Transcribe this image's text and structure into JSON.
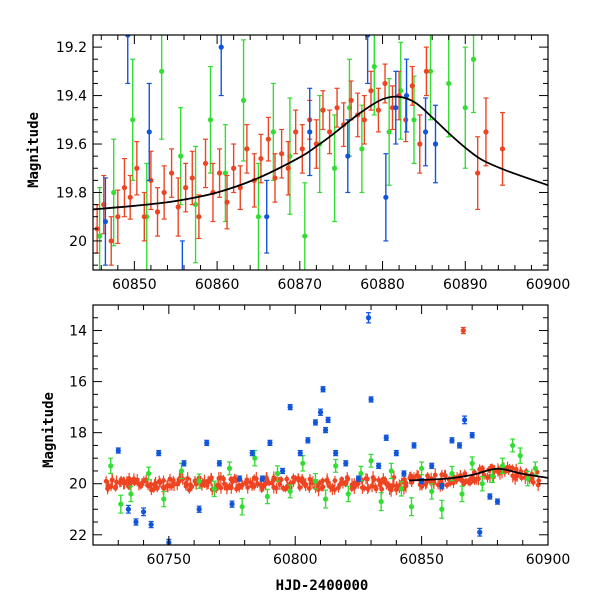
{
  "chart_data": [
    {
      "type": "scatter",
      "title": "",
      "xlabel": "",
      "ylabel": "Magnitude",
      "xlim": [
        60845,
        60900
      ],
      "ylim": [
        20.12,
        19.15
      ],
      "y_inverted": true,
      "xticks": [
        60850,
        60860,
        60870,
        60880,
        60890,
        60900
      ],
      "yticks": [
        19.2,
        19.4,
        19.6,
        19.8,
        20
      ],
      "ytick_labels": [
        "19.2",
        "19.4",
        "19.6",
        "19.8",
        "20"
      ],
      "grid": false,
      "colors": {
        "red": "#ee4422",
        "green": "#33dd33",
        "blue": "#1155dd",
        "model": "#000000"
      },
      "model_curve": {
        "x": [
          60845,
          60850,
          60855,
          60860,
          60865,
          60870,
          60872,
          60874,
          60876,
          60878,
          60880,
          60882,
          60884,
          60886,
          60888,
          60890,
          60892,
          60895,
          60900
        ],
        "y": [
          19.87,
          19.855,
          19.835,
          19.8,
          19.74,
          19.655,
          19.61,
          19.56,
          19.505,
          19.455,
          19.415,
          19.405,
          19.43,
          19.49,
          19.555,
          19.615,
          19.665,
          19.71,
          19.77
        ]
      },
      "series": [
        {
          "color": "red",
          "x": [
            60845.5,
            60846.3,
            60847.2,
            60848.0,
            60848.8,
            60849.5,
            60850.3,
            60851.2,
            60852.0,
            60852.8,
            60853.6,
            60854.5,
            60855.3,
            60856.2,
            60857.0,
            60857.8,
            60858.6,
            60859.5,
            60860.3,
            60861.2,
            60862.0,
            60862.8,
            60863.6,
            60864.5,
            60865.3,
            60866.2,
            60867.0,
            60867.8,
            60868.6,
            60869.5,
            60870.3,
            60871.2,
            60872.0,
            60872.8,
            60873.6,
            60874.5,
            60875.3,
            60876.2,
            60877.0,
            60877.8,
            60878.6,
            60879.5,
            60880.3,
            60881.2,
            60882.0,
            60882.8,
            60883.6,
            60884.5,
            60885.3,
            60891.5,
            60892.5,
            60894.5
          ],
          "y": [
            19.95,
            19.85,
            20.0,
            19.9,
            19.78,
            19.82,
            19.7,
            19.9,
            19.75,
            19.88,
            19.8,
            19.72,
            19.86,
            19.78,
            19.74,
            19.9,
            19.68,
            19.8,
            19.72,
            19.84,
            19.7,
            19.78,
            19.62,
            19.75,
            19.66,
            19.58,
            19.74,
            19.64,
            19.7,
            19.55,
            19.62,
            19.5,
            19.6,
            19.46,
            19.55,
            19.45,
            19.52,
            19.42,
            19.48,
            19.5,
            19.38,
            19.46,
            19.35,
            19.45,
            19.4,
            19.5,
            19.36,
            19.6,
            19.3,
            19.72,
            19.55,
            19.62
          ],
          "err": [
            0.1,
            0.12,
            0.1,
            0.11,
            0.12,
            0.09,
            0.11,
            0.1,
            0.12,
            0.1,
            0.11,
            0.1,
            0.12,
            0.1,
            0.11,
            0.09,
            0.1,
            0.12,
            0.1,
            0.11,
            0.1,
            0.09,
            0.1,
            0.11,
            0.1,
            0.09,
            0.1,
            0.1,
            0.11,
            0.09,
            0.1,
            0.08,
            0.1,
            0.08,
            0.09,
            0.08,
            0.09,
            0.08,
            0.09,
            0.1,
            0.08,
            0.09,
            0.08,
            0.09,
            0.1,
            0.09,
            0.08,
            0.12,
            0.1,
            0.15,
            0.14,
            0.15
          ]
        },
        {
          "color": "green",
          "x": [
            60845.8,
            60847.5,
            60849.8,
            60851.5,
            60853.3,
            60855.6,
            60857.4,
            60859.2,
            60861.0,
            60863.2,
            60865.0,
            60866.8,
            60868.8,
            60870.6,
            60872.4,
            60874.2,
            60876.0,
            60877.5,
            60879.0,
            60880.8,
            60882.2,
            60883.8,
            60885.8,
            60888.0,
            60890.0,
            60891.0
          ],
          "y": [
            19.98,
            19.8,
            19.5,
            19.9,
            19.3,
            19.65,
            19.85,
            19.5,
            19.72,
            19.42,
            19.9,
            19.55,
            19.65,
            19.98,
            19.6,
            19.7,
            19.45,
            19.62,
            19.28,
            19.55,
            19.38,
            19.5,
            19.3,
            19.35,
            19.45,
            19.25
          ],
          "err": [
            0.2,
            0.22,
            0.25,
            0.22,
            0.28,
            0.2,
            0.24,
            0.22,
            0.2,
            0.25,
            0.22,
            0.2,
            0.24,
            0.22,
            0.2,
            0.22,
            0.2,
            0.18,
            0.2,
            0.22,
            0.2,
            0.18,
            0.2,
            0.22,
            0.25,
            0.22
          ]
        },
        {
          "color": "blue",
          "x": [
            60846.5,
            60849.2,
            60851.8,
            60855.8,
            60860.5,
            60866.0,
            60871.2,
            60875.8,
            60878.2,
            60880.4,
            60881.6,
            60882.9,
            60885.2,
            60886.4
          ],
          "y": [
            19.92,
            19.15,
            19.55,
            20.15,
            19.2,
            19.9,
            19.55,
            19.65,
            19.15,
            19.82,
            19.45,
            19.4,
            19.55,
            19.6
          ],
          "err": [
            0.18,
            0.2,
            0.2,
            0.15,
            0.2,
            0.15,
            0.18,
            0.15,
            0.2,
            0.18,
            0.15,
            0.15,
            0.14,
            0.16
          ]
        }
      ]
    },
    {
      "type": "scatter",
      "title": "",
      "xlabel": "HJD-2400000",
      "ylabel": "Magnitude",
      "xlim": [
        60720,
        60900
      ],
      "ylim": [
        22.4,
        13.0
      ],
      "y_inverted": true,
      "xticks": [
        60750,
        60800,
        60850,
        60900
      ],
      "yticks": [
        14,
        16,
        18,
        20,
        22
      ],
      "ytick_labels": [
        "14",
        "16",
        "18",
        "20",
        "22"
      ],
      "grid": false,
      "colors": {
        "red": "#ee4422",
        "green": "#33dd33",
        "blue": "#1155dd",
        "model": "#000000"
      },
      "model_curve": {
        "x": [
          60845,
          60860,
          60870,
          60880,
          60890,
          60900
        ],
        "y": [
          19.87,
          19.8,
          19.655,
          19.415,
          19.615,
          19.77
        ]
      },
      "red_band": {
        "x_start": 60725,
        "x_end": 60897,
        "base_mag": 20.0,
        "scatter": 0.25,
        "count": 300
      },
      "series": [
        {
          "color": "red",
          "x": [
            60866.5
          ],
          "y": [
            14.0
          ],
          "err": [
            0.12
          ]
        },
        {
          "color": "green",
          "x": [
            60727,
            60731,
            60735,
            60742,
            60748,
            60755,
            60762,
            60768,
            60774,
            60779,
            60784,
            60789,
            60793,
            60798,
            60803,
            60808,
            60812,
            60816,
            60821,
            60826,
            60830,
            60834,
            60838,
            60842,
            60846,
            60850,
            60854,
            60858,
            60862,
            60866,
            60870,
            60874,
            60878,
            60882,
            60886,
            60889,
            60892,
            60895
          ],
          "y": [
            19.3,
            20.8,
            20.4,
            19.6,
            20.6,
            19.5,
            19.9,
            20.2,
            19.4,
            20.9,
            19.0,
            20.5,
            19.6,
            20.3,
            19.2,
            19.9,
            20.6,
            19.3,
            20.4,
            19.6,
            19.1,
            20.7,
            19.5,
            20.2,
            20.9,
            19.4,
            20.3,
            21.0,
            19.6,
            20.4,
            19.2,
            20.0,
            19.7,
            19.3,
            18.5,
            18.9,
            19.8,
            19.4
          ],
          "err": [
            0.3,
            0.35,
            0.3,
            0.25,
            0.3,
            0.3,
            0.28,
            0.3,
            0.25,
            0.32,
            0.3,
            0.28,
            0.3,
            0.25,
            0.3,
            0.3,
            0.35,
            0.25,
            0.3,
            0.28,
            0.25,
            0.35,
            0.3,
            0.28,
            0.35,
            0.25,
            0.3,
            0.35,
            0.28,
            0.3,
            0.25,
            0.28,
            0.25,
            0.3,
            0.25,
            0.3,
            0.28,
            0.25
          ]
        },
        {
          "color": "blue",
          "x": [
            60730,
            60734,
            60737,
            60740,
            60743,
            60746,
            60750,
            60756,
            60762,
            60765,
            60770,
            60775,
            60778,
            60783,
            60787,
            60790,
            60795,
            60798,
            60802,
            60805,
            60808,
            60810,
            60811,
            60812,
            60813,
            60816,
            60820,
            60825,
            60829,
            60830,
            60833,
            60836,
            60840,
            60843,
            60847,
            60850,
            60854,
            60858,
            60862,
            60865,
            60867,
            60870,
            60873,
            60877,
            60880
          ],
          "y": [
            18.7,
            21.0,
            21.5,
            21.1,
            21.6,
            18.8,
            22.3,
            19.2,
            21.0,
            18.4,
            19.2,
            20.8,
            19.8,
            18.8,
            19.8,
            18.4,
            19.5,
            17.0,
            18.8,
            18.3,
            17.6,
            17.2,
            16.3,
            17.9,
            17.5,
            18.8,
            19.2,
            19.8,
            13.5,
            16.7,
            19.3,
            18.2,
            18.8,
            19.6,
            18.5,
            19.9,
            19.3,
            20.1,
            18.3,
            18.5,
            17.5,
            18.1,
            21.9,
            20.5,
            20.7
          ],
          "err": [
            0.1,
            0.15,
            0.12,
            0.15,
            0.12,
            0.1,
            0.12,
            0.1,
            0.12,
            0.1,
            0.1,
            0.12,
            0.1,
            0.1,
            0.1,
            0.1,
            0.1,
            0.1,
            0.1,
            0.1,
            0.1,
            0.12,
            0.1,
            0.1,
            0.1,
            0.1,
            0.1,
            0.1,
            0.2,
            0.1,
            0.1,
            0.1,
            0.1,
            0.1,
            0.1,
            0.1,
            0.1,
            0.1,
            0.1,
            0.1,
            0.15,
            0.1,
            0.15,
            0.1,
            0.1
          ]
        }
      ]
    }
  ]
}
